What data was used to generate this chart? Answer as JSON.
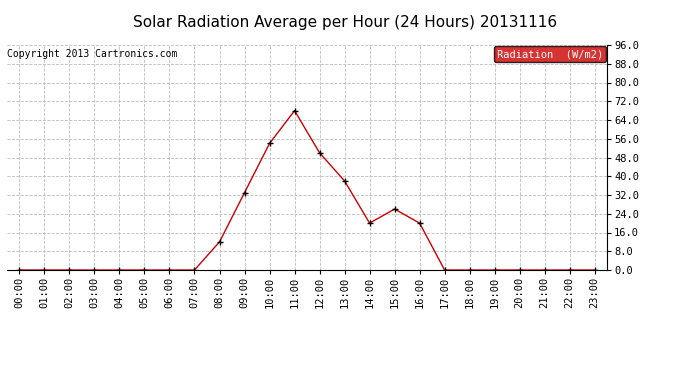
{
  "title": "Solar Radiation Average per Hour (24 Hours) 20131116",
  "copyright": "Copyright 2013 Cartronics.com",
  "legend_label": "Radiation  (W/m2)",
  "hours": [
    "00:00",
    "01:00",
    "02:00",
    "03:00",
    "04:00",
    "05:00",
    "06:00",
    "07:00",
    "08:00",
    "09:00",
    "10:00",
    "11:00",
    "12:00",
    "13:00",
    "14:00",
    "15:00",
    "16:00",
    "17:00",
    "18:00",
    "19:00",
    "20:00",
    "21:00",
    "22:00",
    "23:00"
  ],
  "values": [
    0.0,
    0.0,
    0.0,
    0.0,
    0.0,
    0.0,
    0.0,
    0.0,
    12.0,
    33.0,
    54.0,
    68.0,
    50.0,
    38.0,
    20.0,
    26.0,
    20.0,
    0.0,
    0.0,
    0.0,
    0.0,
    0.0,
    0.0,
    0.0
  ],
  "line_color": "#cc0000",
  "marker_color": "#000000",
  "marker_size": 5,
  "ylim": [
    0,
    96
  ],
  "yticks": [
    0.0,
    8.0,
    16.0,
    24.0,
    32.0,
    40.0,
    48.0,
    56.0,
    64.0,
    72.0,
    80.0,
    88.0,
    96.0
  ],
  "background_color": "#ffffff",
  "grid_color": "#bbbbbb",
  "title_fontsize": 11,
  "copyright_fontsize": 7,
  "legend_bg": "#cc0000",
  "legend_text_color": "#ffffff",
  "tick_fontsize": 7.5,
  "ytick_fontsize": 7.5
}
